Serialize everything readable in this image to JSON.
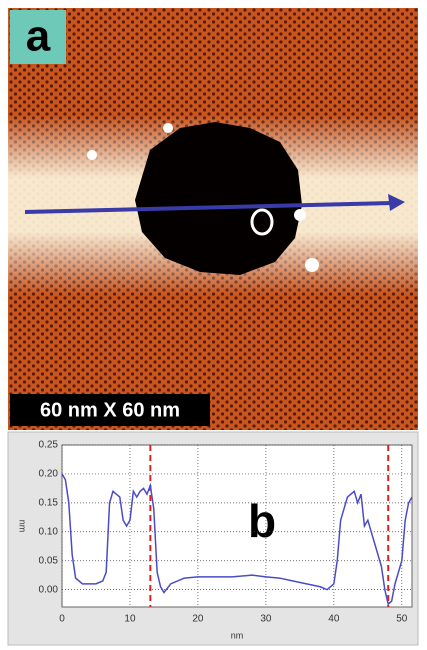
{
  "image": {
    "panel_label": "a",
    "scale_label": "60 nm X 60 nm"
  },
  "chart_data": {
    "type": "line",
    "panel_label": "b",
    "x_label": "nm",
    "y_label": "nm",
    "x": [
      0,
      0.5,
      1,
      1.5,
      2,
      3,
      4,
      5,
      6,
      6.5,
      7,
      7.5,
      8,
      8.5,
      9,
      9.5,
      10,
      10.5,
      11,
      11.5,
      12,
      12.5,
      13,
      13.5,
      14,
      14.5,
      15,
      16,
      18,
      20,
      22,
      25,
      28,
      30,
      32,
      34,
      36,
      38,
      39,
      40,
      40.5,
      41,
      42,
      43,
      43.5,
      44,
      44.5,
      45,
      45.5,
      46,
      46.5,
      47,
      47.5,
      48,
      48.5,
      49,
      50,
      50.5,
      51,
      51.5
    ],
    "series": [
      {
        "color": "#4b4bc8",
        "values": [
          0.2,
          0.19,
          0.15,
          0.06,
          0.02,
          0.01,
          0.01,
          0.01,
          0.015,
          0.03,
          0.15,
          0.17,
          0.165,
          0.16,
          0.12,
          0.11,
          0.12,
          0.17,
          0.16,
          0.17,
          0.175,
          0.165,
          0.18,
          0.14,
          0.03,
          0.005,
          -0.005,
          0.01,
          0.02,
          0.022,
          0.022,
          0.022,
          0.025,
          0.022,
          0.02,
          0.015,
          0.01,
          0.005,
          0,
          0.01,
          0.05,
          0.12,
          0.16,
          0.17,
          0.15,
          0.165,
          0.11,
          0.12,
          0.1,
          0.08,
          0.06,
          0.04,
          0,
          -0.025,
          -0.02,
          0.01,
          0.05,
          0.12,
          0.15,
          0.16
        ]
      }
    ],
    "vlines": [
      13,
      48
    ],
    "vline_color": "#e02020",
    "xlim": [
      0,
      51.5
    ],
    "xticks": [
      0,
      10,
      20,
      30,
      40,
      50
    ],
    "ylim": [
      -0.03,
      0.25
    ],
    "yticks": [
      0.25,
      {
        "value": 0.2,
        "label": "0.20"
      },
      0.15,
      {
        "value": 0.1,
        "label": "0.10"
      },
      0.05,
      {
        "value": 0,
        "label": "0.00"
      }
    ],
    "grid": true
  }
}
